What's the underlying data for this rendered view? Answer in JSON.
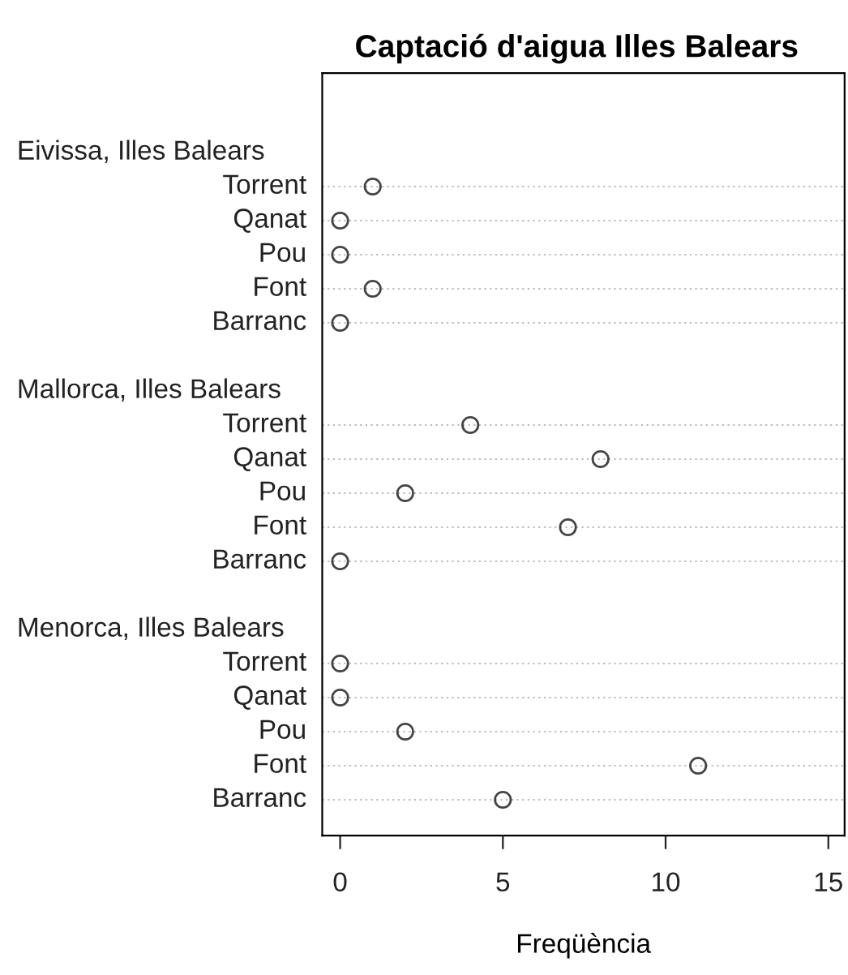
{
  "chart_data": {
    "type": "scatter",
    "orientation": "horizontal",
    "title": "Captació d'aigua Illes Balears",
    "xlabel": "Freqüència",
    "categories": [
      null,
      "Torrent",
      "Qanat",
      "Pou",
      "Font",
      "Barranc",
      null,
      null,
      "Torrent",
      "Qanat",
      "Pou",
      "Font",
      "Barranc",
      null,
      null,
      "Torrent",
      "Qanat",
      "Pou",
      "Font",
      "Barranc"
    ],
    "annotations": [
      "Eivissa, Illes Balears",
      "Mallorca, Illes Balears",
      "Menorca, Illes Balears"
    ],
    "values": [
      null,
      1,
      0,
      0,
      1,
      0,
      null,
      null,
      4,
      8,
      2,
      7,
      0,
      null,
      null,
      0,
      0,
      2,
      11,
      5
    ],
    "color": "#444444",
    "marker": "circle",
    "grid": "y",
    "xlim": [
      -0.55,
      15.5
    ],
    "xticks": [
      0,
      5,
      10,
      15
    ]
  }
}
